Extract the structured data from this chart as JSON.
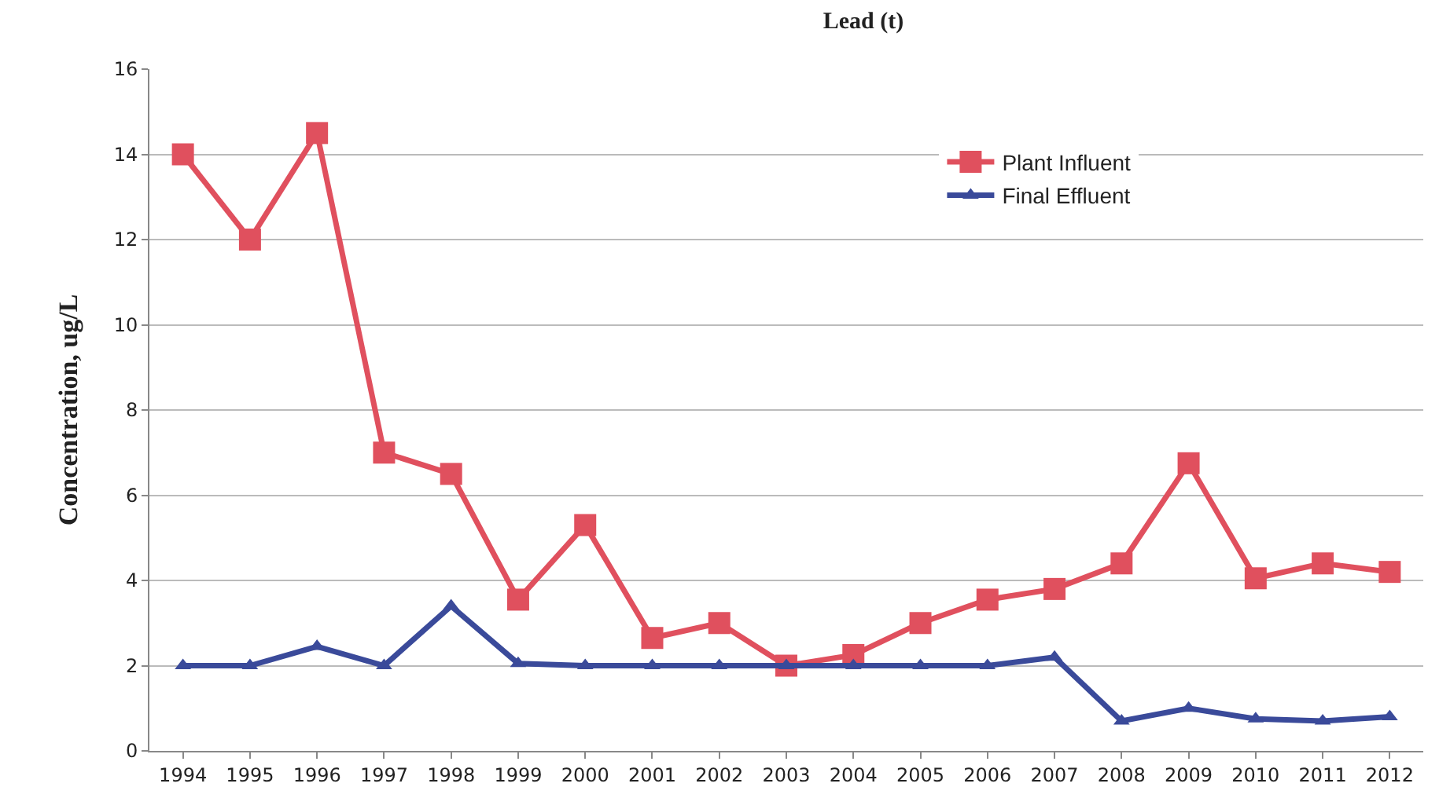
{
  "chart_data": {
    "type": "line",
    "title": "Lead (t)",
    "ylabel": "Concentration, ug/L",
    "categories": [
      "1994",
      "1995",
      "1996",
      "1997",
      "1998",
      "1999",
      "2000",
      "2001",
      "2002",
      "2003",
      "2004",
      "2005",
      "2006",
      "2007",
      "2008",
      "2009",
      "2010",
      "2011",
      "2012"
    ],
    "series": [
      {
        "name": "Plant Influent",
        "color": "#e0505e",
        "marker": "square",
        "values": [
          14.0,
          12.0,
          14.5,
          7.0,
          6.5,
          3.55,
          5.3,
          2.65,
          3.0,
          2.0,
          2.25,
          3.0,
          3.55,
          3.8,
          4.4,
          6.75,
          4.05,
          4.4,
          4.2
        ]
      },
      {
        "name": "Final Effluent",
        "color": "#3a4a9a",
        "marker": "triangle",
        "values": [
          2.0,
          2.0,
          2.45,
          2.0,
          3.4,
          2.05,
          2.0,
          2.0,
          2.0,
          2.0,
          2.0,
          2.0,
          2.0,
          2.2,
          0.7,
          1.0,
          0.75,
          0.7,
          0.8
        ]
      }
    ],
    "ylim": [
      0,
      16
    ],
    "yticks": [
      0,
      2,
      4,
      6,
      8,
      10,
      12,
      14,
      16
    ],
    "grid": "y",
    "legend": "top right",
    "line_style": "solid"
  }
}
